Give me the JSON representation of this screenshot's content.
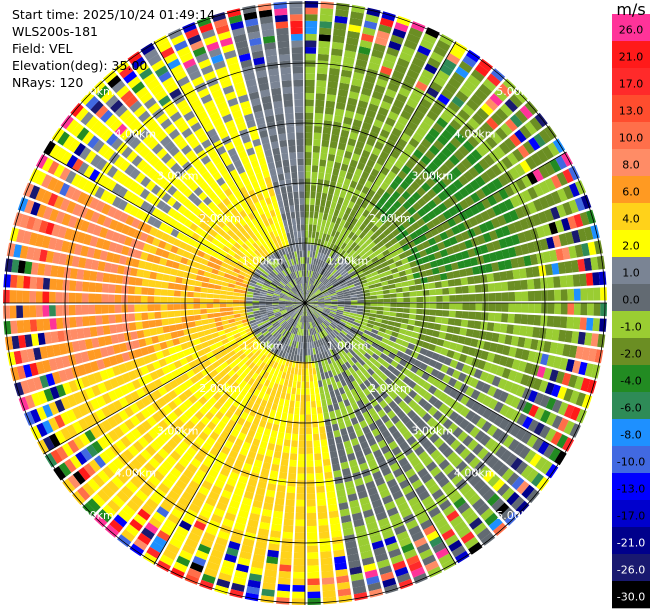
{
  "info": {
    "start_time": "Start time: 2025/10/24 01:49:14",
    "instrument": "WLS200s-181",
    "field": "Field: VEL",
    "elevation": "Elevation(deg): 35.00",
    "nrays": "NRays: 120"
  },
  "colorbar": {
    "unit": "m/s",
    "bins": [
      {
        "label": "26.0",
        "color": "#ff3399",
        "text": "#000000"
      },
      {
        "label": "21.0",
        "color": "#ff1a1a",
        "text": "#000000"
      },
      {
        "label": "17.0",
        "color": "#ff2a2a",
        "text": "#000000"
      },
      {
        "label": "13.0",
        "color": "#ff4d2e",
        "text": "#000000"
      },
      {
        "label": "10.0",
        "color": "#ff6f4a",
        "text": "#000000"
      },
      {
        "label": "8.0",
        "color": "#ff8c66",
        "text": "#000000"
      },
      {
        "label": "6.0",
        "color": "#ff9a22",
        "text": "#000000"
      },
      {
        "label": "4.0",
        "color": "#ffd21a",
        "text": "#000000"
      },
      {
        "label": "2.0",
        "color": "#ffff00",
        "text": "#000000"
      },
      {
        "label": "1.0",
        "color": "#7a8494",
        "text": "#000000"
      },
      {
        "label": "0.0",
        "color": "#626a72",
        "text": "#000000"
      },
      {
        "label": "-1.0",
        "color": "#9acd32",
        "text": "#000000"
      },
      {
        "label": "-2.0",
        "color": "#6b8e23",
        "text": "#000000"
      },
      {
        "label": "-4.0",
        "color": "#228b22",
        "text": "#000000"
      },
      {
        "label": "-6.0",
        "color": "#2e8b57",
        "text": "#000000"
      },
      {
        "label": "-8.0",
        "color": "#1e90ff",
        "text": "#000000"
      },
      {
        "label": "-10.0",
        "color": "#4169e1",
        "text": "#000000"
      },
      {
        "label": "-13.0",
        "color": "#0000ff",
        "text": "#000000"
      },
      {
        "label": "-17.0",
        "color": "#0000cd",
        "text": "#000000"
      },
      {
        "label": "-21.0",
        "color": "#00008b",
        "text": "#ffffff"
      },
      {
        "label": "-26.0",
        "color": "#191970",
        "text": "#ffffff"
      },
      {
        "label": "-30.0",
        "color": "#000000",
        "text": "#ffffff"
      }
    ]
  },
  "chart_data": {
    "type": "heatmap",
    "projection": "polar (PPI)",
    "field": "VEL",
    "units": "m/s",
    "n_rays": 120,
    "azimuth_range_deg": [
      0,
      360
    ],
    "range_rings_km": [
      "1.00km",
      "2.00km",
      "3.00km",
      "4.00km",
      "5.00km"
    ],
    "dominant_sectors": [
      {
        "azimuth_from_deg": 0,
        "azimuth_to_deg": 110,
        "dominant_velocity_ms": -2.0
      },
      {
        "azimuth_from_deg": 110,
        "azimuth_to_deg": 170,
        "dominant_velocity_ms": -1.0
      },
      {
        "azimuth_from_deg": 170,
        "azimuth_to_deg": 250,
        "dominant_velocity_ms": 4.0
      },
      {
        "azimuth_from_deg": 250,
        "azimuth_to_deg": 290,
        "dominant_velocity_ms": 6.0
      },
      {
        "azimuth_from_deg": 290,
        "azimuth_to_deg": 345,
        "dominant_velocity_ms": 2.0
      },
      {
        "azimuth_from_deg": 345,
        "azimuth_to_deg": 360,
        "dominant_velocity_ms": 0.0
      }
    ]
  }
}
